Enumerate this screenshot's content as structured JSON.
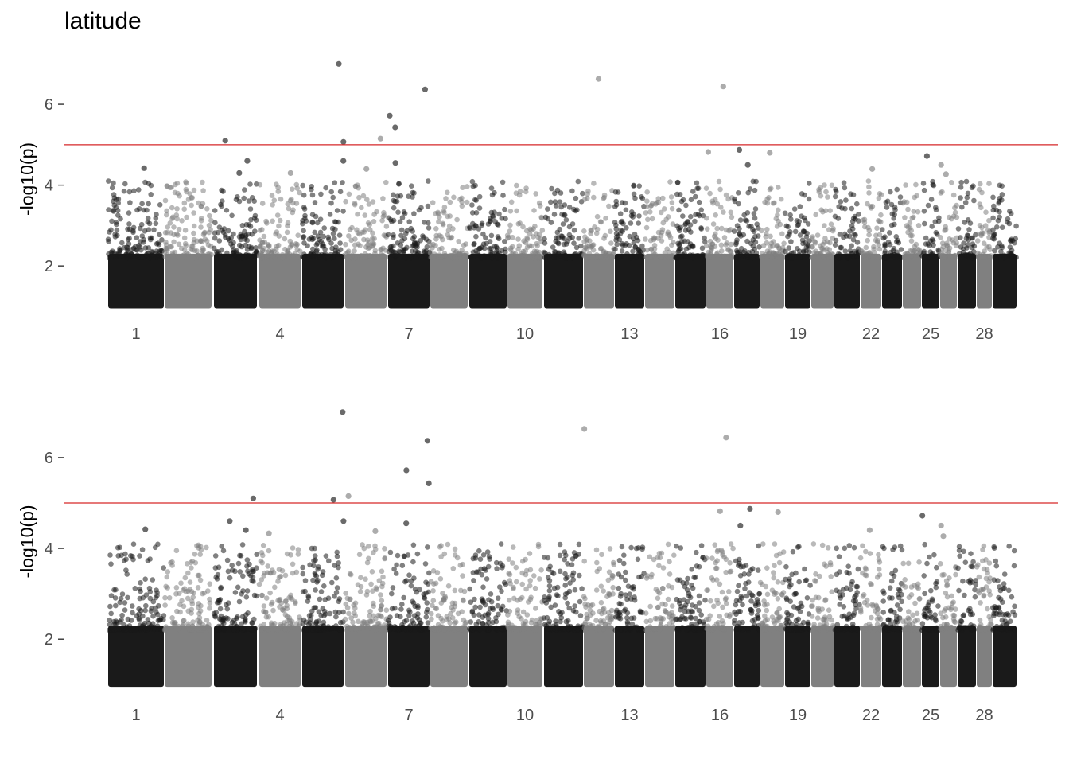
{
  "chart_data": [
    {
      "type": "scatter",
      "title": "latitude",
      "ylabel": "-log10(p)",
      "threshold": 5,
      "ylim": [
        0.9,
        7.4
      ],
      "yticks": [
        2,
        4,
        6
      ],
      "chromosomes": [
        "1",
        "2",
        "3",
        "4",
        "5",
        "6",
        "7",
        "8",
        "9",
        "10",
        "11",
        "12",
        "13",
        "14",
        "15",
        "16",
        "17",
        "18",
        "19",
        "20",
        "21",
        "22",
        "23",
        "24",
        "25",
        "26",
        "27",
        "28",
        "29"
      ],
      "xtick_labels": [
        "1",
        "4",
        "7",
        "10",
        "13",
        "16",
        "19",
        "22",
        "25",
        "28"
      ],
      "colors": {
        "odd": "#1a1a1a",
        "even": "#808080",
        "threshold": "#d62728"
      },
      "notable_points": [
        {
          "chrom": "3",
          "y": 5.1
        },
        {
          "chrom": "3",
          "y": 4.6
        },
        {
          "chrom": "3",
          "y": 4.3
        },
        {
          "chrom": "4",
          "y": 4.3
        },
        {
          "chrom": "5",
          "y": 5.07
        },
        {
          "chrom": "5",
          "y": 4.6
        },
        {
          "chrom": "5",
          "y": 7.0
        },
        {
          "chrom": "6",
          "y": 5.15
        },
        {
          "chrom": "6",
          "y": 4.4
        },
        {
          "chrom": "7",
          "y": 6.37
        },
        {
          "chrom": "7",
          "y": 5.72
        },
        {
          "chrom": "7",
          "y": 5.43
        },
        {
          "chrom": "7",
          "y": 4.55
        },
        {
          "chrom": "1",
          "y": 4.42
        },
        {
          "chrom": "12",
          "y": 6.63
        },
        {
          "chrom": "16",
          "y": 6.44
        },
        {
          "chrom": "16",
          "y": 4.82
        },
        {
          "chrom": "17",
          "y": 4.87
        },
        {
          "chrom": "17",
          "y": 4.5
        },
        {
          "chrom": "18",
          "y": 4.8
        },
        {
          "chrom": "22",
          "y": 4.4
        },
        {
          "chrom": "25",
          "y": 4.72
        },
        {
          "chrom": "26",
          "y": 4.5
        },
        {
          "chrom": "26",
          "y": 4.27
        }
      ]
    },
    {
      "type": "scatter",
      "title": "",
      "ylabel": "-log10(p)",
      "threshold": 5,
      "ylim": [
        0.9,
        7.4
      ],
      "yticks": [
        2,
        4,
        6
      ],
      "chromosomes": [
        "1",
        "2",
        "3",
        "4",
        "5",
        "6",
        "7",
        "8",
        "9",
        "10",
        "11",
        "12",
        "13",
        "14",
        "15",
        "16",
        "17",
        "18",
        "19",
        "20",
        "21",
        "22",
        "23",
        "24",
        "25",
        "26",
        "27",
        "28",
        "29"
      ],
      "xtick_labels": [
        "1",
        "4",
        "7",
        "10",
        "13",
        "16",
        "19",
        "22",
        "25",
        "28"
      ],
      "colors": {
        "odd": "#1a1a1a",
        "even": "#808080",
        "threshold": "#d62728"
      },
      "notable_points": [
        {
          "chrom": "3",
          "y": 5.1
        },
        {
          "chrom": "3",
          "y": 4.6
        },
        {
          "chrom": "3",
          "y": 4.4
        },
        {
          "chrom": "4",
          "y": 4.33
        },
        {
          "chrom": "5",
          "y": 5.07
        },
        {
          "chrom": "5",
          "y": 4.6
        },
        {
          "chrom": "5",
          "y": 7.0
        },
        {
          "chrom": "6",
          "y": 5.15
        },
        {
          "chrom": "6",
          "y": 4.38
        },
        {
          "chrom": "7",
          "y": 6.37
        },
        {
          "chrom": "7",
          "y": 5.72
        },
        {
          "chrom": "7",
          "y": 5.43
        },
        {
          "chrom": "7",
          "y": 4.55
        },
        {
          "chrom": "1",
          "y": 4.42
        },
        {
          "chrom": "12",
          "y": 6.63
        },
        {
          "chrom": "16",
          "y": 6.44
        },
        {
          "chrom": "16",
          "y": 4.82
        },
        {
          "chrom": "17",
          "y": 4.87
        },
        {
          "chrom": "17",
          "y": 4.5
        },
        {
          "chrom": "18",
          "y": 4.8
        },
        {
          "chrom": "22",
          "y": 4.4
        },
        {
          "chrom": "25",
          "y": 4.72
        },
        {
          "chrom": "26",
          "y": 4.5
        },
        {
          "chrom": "26",
          "y": 4.27
        }
      ]
    }
  ]
}
